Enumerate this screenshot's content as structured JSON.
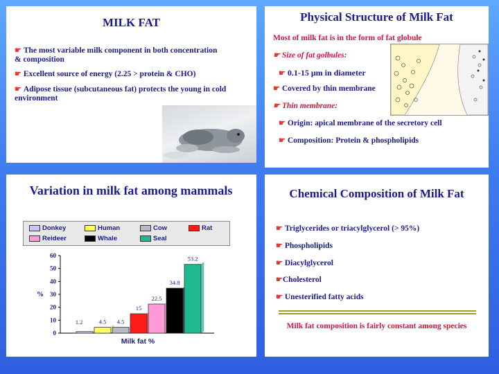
{
  "slide1": {
    "title": "MILK FAT",
    "bullets": [
      "The most variable milk component in both concentration & composition",
      "Excellent source of energy (2.25 > protein & CHO)",
      "Adipose tissue (subcutaneous fat) protects the young in cold environment"
    ]
  },
  "slide2": {
    "title": "Physical Structure of Milk Fat",
    "intro": "Most of milk fat is in the form of fat globule",
    "b1": "Size of fat golbules:",
    "b2": "0.1-15 μm in diameter",
    "b3": "Covered by thin membrane",
    "b4": "Thin membrane:",
    "b5": "Origin: apical membrane of the secretory cell",
    "b6": "Composition: Protein & phospholipids"
  },
  "slide3": {
    "title": "Variation in milk fat among mammals",
    "ylabel": "%",
    "xlabel": "Milk fat %",
    "legend": [
      "Donkey",
      "Human",
      "Cow",
      "Rat",
      "Reideer",
      "Whale",
      "Seal"
    ],
    "colors": {
      "Donkey": "#c8c8ff",
      "Human": "#ffff60",
      "Cow": "#b8b8c8",
      "Rat": "#ff1a1a",
      "Reideer": "#ff9ad8",
      "Whale": "#000000",
      "Seal": "#20b890"
    }
  },
  "chart_data": {
    "type": "bar",
    "title": "Variation in milk fat among mammals",
    "xlabel": "Milk fat %",
    "ylabel": "%",
    "categories": [
      "Donkey",
      "Human",
      "Cow",
      "Rat",
      "Reideer",
      "Whale",
      "Seal"
    ],
    "values": [
      1.2,
      4.5,
      4.5,
      15,
      22.5,
      34.8,
      53.2
    ],
    "ylim": [
      0,
      60
    ],
    "yticks": [
      0,
      10,
      20,
      30,
      40,
      50,
      60
    ],
    "legend_position": "top"
  },
  "slide4": {
    "title": "Chemical Composition of Milk Fat",
    "items": [
      "Triglycerides or triacylglycerol (> 95%)",
      "Phospholipids",
      "Diacylglycerol",
      "Cholesterol",
      "Unesterified fatty acids"
    ],
    "footer": "Milk fat composition is fairly constant among species"
  }
}
